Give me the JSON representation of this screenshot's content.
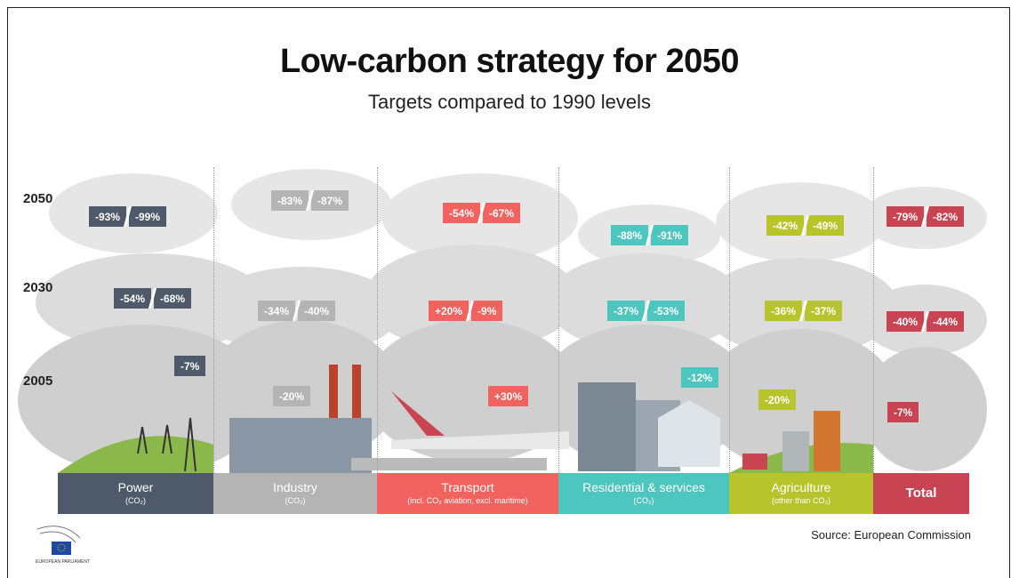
{
  "title": "Low-carbon strategy for 2050",
  "subtitle": "Targets compared to 1990 levels",
  "years": [
    "2050",
    "2030",
    "2005"
  ],
  "sectors": [
    {
      "name": "Power",
      "note": "(CO₂)",
      "color": "#4e5a69",
      "y2050": [
        "-93%",
        "-99%"
      ],
      "y2030": [
        "-54%",
        "-68%"
      ],
      "y2005": "-7%"
    },
    {
      "name": "Industry",
      "note": "(CO₂)",
      "color": "#b4b4b4",
      "y2050": [
        "-83%",
        "-87%"
      ],
      "y2030": [
        "-34%",
        "-40%"
      ],
      "y2005": "-20%"
    },
    {
      "name": "Transport",
      "note": "(incl. CO₂ aviation, excl. maritime)",
      "color": "#f2625f",
      "y2050": [
        "-54%",
        "-67%"
      ],
      "y2030": [
        "+20%",
        "-9%"
      ],
      "y2005": "+30%"
    },
    {
      "name": "Residential & services",
      "note": "(CO₂)",
      "color": "#4ec6c0",
      "y2050": [
        "-88%",
        "-91%"
      ],
      "y2030": [
        "-37%",
        "-53%"
      ],
      "y2005": "-12%"
    },
    {
      "name": "Agriculture",
      "note": "(other than CO₂)",
      "color": "#b8c42b",
      "y2050": [
        "-42%",
        "-49%"
      ],
      "y2030": [
        "-36%",
        "-37%"
      ],
      "y2005": "-20%"
    },
    {
      "name": "Total",
      "color": "#c94452",
      "y2050": [
        "-79%",
        "-82%"
      ],
      "y2030": [
        "-40%",
        "-44%"
      ],
      "y2005": "-7%"
    }
  ],
  "source": "Source: European Commission",
  "logo_text": "EUROPEAN PARLIAMENT"
}
